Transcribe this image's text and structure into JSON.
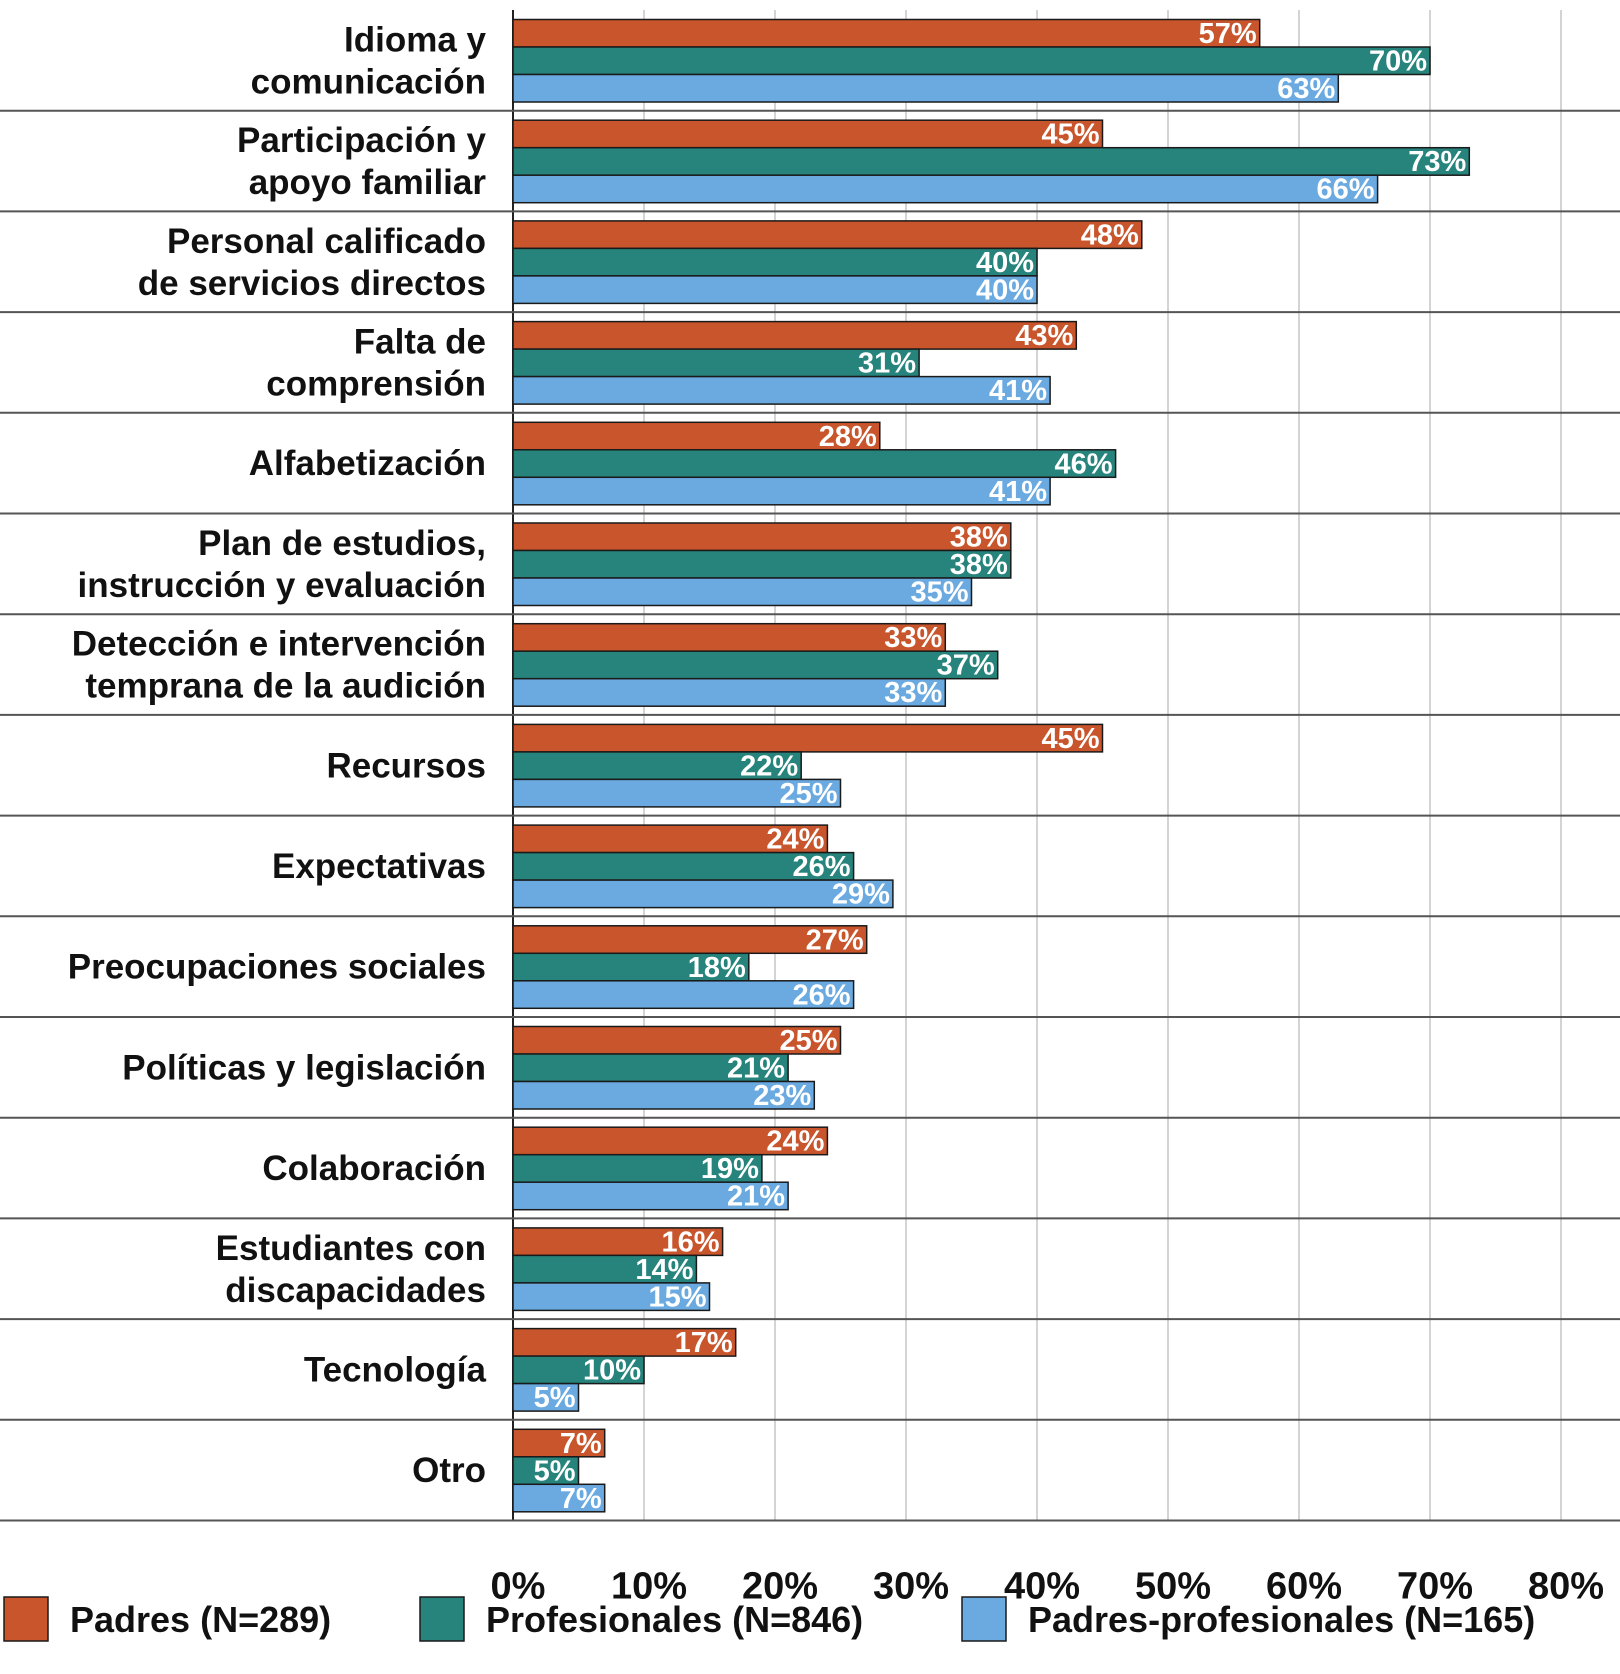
{
  "chart_data": {
    "type": "bar",
    "orientation": "horizontal",
    "categories": [
      [
        "Idioma y",
        "comunicación"
      ],
      [
        "Participación y",
        "apoyo familiar"
      ],
      [
        "Personal calificado",
        "de servicios directos"
      ],
      [
        "Falta de",
        "comprensión"
      ],
      [
        "Alfabetización"
      ],
      [
        "Plan de estudios,",
        "instrucción y evaluación"
      ],
      [
        "Detección e intervención",
        "temprana de la audición"
      ],
      [
        "Recursos"
      ],
      [
        "Expectativas"
      ],
      [
        "Preocupaciones sociales"
      ],
      [
        "Políticas y legislación"
      ],
      [
        "Colaboración"
      ],
      [
        "Estudiantes con",
        "discapacidades"
      ],
      [
        "Tecnología"
      ],
      [
        "Otro"
      ]
    ],
    "series": [
      {
        "name": "Padres (N=289)",
        "color": "#C8552B",
        "values": [
          57,
          45,
          48,
          43,
          28,
          38,
          33,
          45,
          24,
          27,
          25,
          24,
          16,
          17,
          7
        ]
      },
      {
        "name": "Profesionales (N=846)",
        "color": "#26847C",
        "values": [
          70,
          73,
          40,
          31,
          46,
          38,
          37,
          22,
          26,
          18,
          21,
          19,
          14,
          10,
          5
        ]
      },
      {
        "name": "Padres-profesionales (N=165)",
        "color": "#6AAAE0",
        "values": [
          63,
          66,
          40,
          41,
          41,
          35,
          33,
          25,
          29,
          26,
          23,
          21,
          15,
          5,
          7
        ]
      }
    ],
    "xlim": [
      0,
      80
    ],
    "xticks": [
      "0%",
      "10%",
      "20%",
      "30%",
      "40%",
      "50%",
      "60%",
      "70%",
      "80%"
    ],
    "value_suffix": "%",
    "grid": true,
    "legend": "bottom"
  }
}
